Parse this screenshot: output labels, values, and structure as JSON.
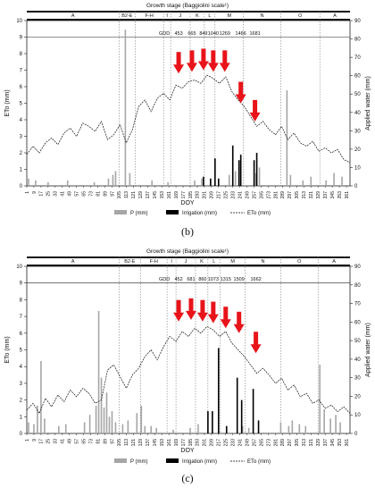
{
  "chart_data": [
    {
      "type": "bar",
      "panel_label": "(b)",
      "stage_title": "Growth stage (Baggiolini scale¹)",
      "stages": [
        {
          "label": "A",
          "start": 1,
          "end": 105
        },
        {
          "label": "B2-E",
          "start": 105,
          "end": 123
        },
        {
          "label": "F-H",
          "start": 123,
          "end": 155
        },
        {
          "label": "I",
          "start": 155,
          "end": 163
        },
        {
          "label": "J",
          "start": 163,
          "end": 185
        },
        {
          "label": "K",
          "start": 185,
          "end": 201
        },
        {
          "label": "L",
          "start": 201,
          "end": 213
        },
        {
          "label": "M",
          "start": 213,
          "end": 245
        },
        {
          "label": "N",
          "start": 245,
          "end": 287
        },
        {
          "label": "O",
          "start": 287,
          "end": 331
        },
        {
          "label": "A",
          "start": 331,
          "end": 365
        }
      ],
      "gdd_label": "GDD",
      "gdd": [
        {
          "doy": 172,
          "value": "453"
        },
        {
          "doy": 187,
          "value": "665"
        },
        {
          "doy": 200,
          "value": "849"
        },
        {
          "doy": 211,
          "value": "1040"
        },
        {
          "doy": 224,
          "value": "1269"
        },
        {
          "doy": 242,
          "value": "1466"
        },
        {
          "doy": 258,
          "value": "1681"
        }
      ],
      "arrows_doy": [
        172,
        187,
        200,
        211,
        224,
        242,
        258
      ],
      "arrow_eto": [
        6.8,
        6.9,
        7.0,
        6.9,
        6.9,
        5.0,
        3.9
      ],
      "x_ticks": [
        1,
        9,
        17,
        25,
        33,
        41,
        49,
        57,
        65,
        73,
        81,
        89,
        97,
        105,
        113,
        121,
        129,
        137,
        145,
        153,
        161,
        169,
        177,
        185,
        193,
        201,
        209,
        217,
        225,
        233,
        241,
        249,
        257,
        265,
        273,
        281,
        289,
        297,
        305,
        313,
        321,
        329,
        337,
        345,
        353,
        361
      ],
      "xlabel": "DOY",
      "ylabel": "ETo (mm)",
      "y2label": "Applied water (mm)",
      "ylim": [
        0,
        10
      ],
      "y2lim": [
        0,
        90
      ],
      "y_ticks": [
        0,
        1,
        2,
        3,
        4,
        5,
        6,
        7,
        8,
        9,
        10
      ],
      "y2_ticks": [
        0,
        10,
        20,
        30,
        40,
        50,
        60,
        70,
        80,
        90
      ],
      "legend": {
        "p": "P (mm)",
        "irr": "Irrigation (mm)",
        "eto": "ETo (mm)"
      },
      "eto_series": {
        "name": "ETo (mm)",
        "points": [
          [
            1,
            1.9
          ],
          [
            8,
            2.4
          ],
          [
            15,
            2.0
          ],
          [
            22,
            2.6
          ],
          [
            29,
            2.9
          ],
          [
            36,
            2.5
          ],
          [
            43,
            3.2
          ],
          [
            50,
            3.5
          ],
          [
            57,
            3.0
          ],
          [
            64,
            3.8
          ],
          [
            71,
            3.6
          ],
          [
            78,
            3.3
          ],
          [
            85,
            3.9
          ],
          [
            92,
            2.8
          ],
          [
            99,
            3.1
          ],
          [
            106,
            3.7
          ],
          [
            113,
            2.6
          ],
          [
            120,
            3.4
          ],
          [
            127,
            4.8
          ],
          [
            134,
            5.2
          ],
          [
            141,
            4.5
          ],
          [
            148,
            5.3
          ],
          [
            155,
            5.6
          ],
          [
            162,
            5.2
          ],
          [
            169,
            6.1
          ],
          [
            176,
            5.9
          ],
          [
            183,
            6.3
          ],
          [
            190,
            6.4
          ],
          [
            197,
            6.2
          ],
          [
            204,
            6.7
          ],
          [
            211,
            6.5
          ],
          [
            218,
            6.2
          ],
          [
            225,
            6.6
          ],
          [
            232,
            5.7
          ],
          [
            239,
            5.2
          ],
          [
            246,
            4.8
          ],
          [
            253,
            4.2
          ],
          [
            260,
            3.6
          ],
          [
            267,
            3.9
          ],
          [
            274,
            3.4
          ],
          [
            281,
            3.1
          ],
          [
            288,
            3.6
          ],
          [
            295,
            2.8
          ],
          [
            302,
            3.2
          ],
          [
            309,
            2.6
          ],
          [
            316,
            2.4
          ],
          [
            323,
            2.7
          ],
          [
            330,
            2.1
          ],
          [
            337,
            2.3
          ],
          [
            344,
            2.0
          ],
          [
            351,
            2.2
          ],
          [
            358,
            1.6
          ],
          [
            365,
            1.4
          ]
        ]
      },
      "p_series": {
        "name": "P (mm)",
        "points": [
          [
            3,
            4
          ],
          [
            11,
            3
          ],
          [
            25,
            2
          ],
          [
            47,
            3
          ],
          [
            77,
            2
          ],
          [
            93,
            4
          ],
          [
            98,
            6
          ],
          [
            101,
            8
          ],
          [
            112,
            85
          ],
          [
            117,
            7
          ],
          [
            142,
            3
          ],
          [
            160,
            2
          ],
          [
            190,
            3
          ],
          [
            198,
            4
          ],
          [
            229,
            6
          ],
          [
            236,
            8
          ],
          [
            259,
            7
          ],
          [
            263,
            10
          ],
          [
            294,
            52
          ],
          [
            298,
            6
          ],
          [
            312,
            3
          ],
          [
            321,
            5
          ],
          [
            338,
            3
          ],
          [
            347,
            7
          ],
          [
            356,
            5
          ]
        ]
      },
      "irr_series": {
        "name": "Irrigation (mm)",
        "points": [
          [
            200,
            5
          ],
          [
            208,
            4
          ],
          [
            213,
            15
          ],
          [
            217,
            4
          ],
          [
            233,
            22
          ],
          [
            240,
            14
          ],
          [
            242,
            17
          ],
          [
            257,
            14
          ],
          [
            260,
            18
          ]
        ]
      }
    },
    {
      "type": "bar",
      "panel_label": "(c)",
      "stage_title": "Growth stage (Baggiolini scale¹)",
      "stages": [
        {
          "label": "A",
          "start": 1,
          "end": 105
        },
        {
          "label": "B2-E",
          "start": 105,
          "end": 129
        },
        {
          "label": "F-H",
          "start": 129,
          "end": 159
        },
        {
          "label": "I",
          "start": 159,
          "end": 169
        },
        {
          "label": "J",
          "start": 169,
          "end": 191
        },
        {
          "label": "K",
          "start": 191,
          "end": 205
        },
        {
          "label": "L",
          "start": 205,
          "end": 219
        },
        {
          "label": "M",
          "start": 219,
          "end": 247
        },
        {
          "label": "N",
          "start": 247,
          "end": 287
        },
        {
          "label": "O",
          "start": 287,
          "end": 329
        },
        {
          "label": "A",
          "start": 329,
          "end": 365
        }
      ],
      "gdd_label": "GDD",
      "gdd": [
        {
          "doy": 172,
          "value": "452"
        },
        {
          "doy": 186,
          "value": "681"
        },
        {
          "doy": 199,
          "value": "860"
        },
        {
          "doy": 211,
          "value": "1073"
        },
        {
          "doy": 225,
          "value": "1315"
        },
        {
          "doy": 240,
          "value": "1509"
        },
        {
          "doy": 259,
          "value": "1662"
        }
      ],
      "arrows_doy": [
        172,
        186,
        199,
        211,
        225,
        240,
        259
      ],
      "arrow_eto": [
        6.7,
        6.8,
        6.7,
        6.6,
        6.3,
        6.0,
        4.8
      ],
      "x_ticks": [
        1,
        9,
        17,
        25,
        33,
        41,
        49,
        57,
        65,
        73,
        81,
        89,
        97,
        105,
        113,
        121,
        129,
        137,
        145,
        153,
        161,
        169,
        177,
        185,
        193,
        201,
        209,
        217,
        225,
        233,
        241,
        249,
        257,
        265,
        273,
        281,
        289,
        297,
        305,
        313,
        321,
        329,
        337,
        345,
        353,
        361
      ],
      "xlabel": "DOY",
      "ylabel": "ETo (mm)",
      "y2label": "Applied water (mm)",
      "ylim": [
        0,
        10
      ],
      "y2lim": [
        0,
        90
      ],
      "y_ticks": [
        0,
        1,
        2,
        3,
        4,
        5,
        6,
        7,
        8,
        9,
        10
      ],
      "y2_ticks": [
        0,
        10,
        20,
        30,
        40,
        50,
        60,
        70,
        80,
        90
      ],
      "legend": {
        "p": "P (mm)",
        "irr": "Irrigation (mm)",
        "eto": "ETo (mm)"
      },
      "eto_series": {
        "name": "ETo (mm)",
        "points": [
          [
            1,
            1.4
          ],
          [
            8,
            1.8
          ],
          [
            15,
            1.2
          ],
          [
            22,
            2.1
          ],
          [
            29,
            1.6
          ],
          [
            36,
            2.3
          ],
          [
            43,
            1.9
          ],
          [
            50,
            2.6
          ],
          [
            57,
            2.2
          ],
          [
            64,
            2.7
          ],
          [
            71,
            2.4
          ],
          [
            78,
            1.8
          ],
          [
            85,
            2.0
          ],
          [
            92,
            3.8
          ],
          [
            99,
            4.1
          ],
          [
            106,
            3.4
          ],
          [
            113,
            2.7
          ],
          [
            120,
            3.5
          ],
          [
            127,
            3.9
          ],
          [
            134,
            4.6
          ],
          [
            141,
            5.0
          ],
          [
            148,
            4.4
          ],
          [
            155,
            5.2
          ],
          [
            162,
            5.8
          ],
          [
            169,
            5.5
          ],
          [
            176,
            6.1
          ],
          [
            183,
            5.8
          ],
          [
            190,
            6.3
          ],
          [
            197,
            6.0
          ],
          [
            204,
            6.4
          ],
          [
            211,
            6.2
          ],
          [
            218,
            5.8
          ],
          [
            225,
            6.1
          ],
          [
            232,
            5.4
          ],
          [
            239,
            5.0
          ],
          [
            246,
            4.6
          ],
          [
            253,
            4.1
          ],
          [
            260,
            3.6
          ],
          [
            267,
            3.9
          ],
          [
            274,
            3.5
          ],
          [
            281,
            3.0
          ],
          [
            288,
            3.3
          ],
          [
            295,
            2.6
          ],
          [
            302,
            2.9
          ],
          [
            309,
            2.2
          ],
          [
            316,
            2.4
          ],
          [
            323,
            1.8
          ],
          [
            330,
            2.0
          ],
          [
            337,
            1.5
          ],
          [
            344,
            1.7
          ],
          [
            351,
            1.3
          ],
          [
            358,
            1.6
          ],
          [
            365,
            1.2
          ]
        ]
      },
      "p_series": {
        "name": "P (mm)",
        "points": [
          [
            3,
            6
          ],
          [
            9,
            5
          ],
          [
            13,
            15
          ],
          [
            17,
            39
          ],
          [
            21,
            8
          ],
          [
            37,
            4
          ],
          [
            45,
            5
          ],
          [
            66,
            6
          ],
          [
            72,
            10
          ],
          [
            79,
            15
          ],
          [
            82,
            66
          ],
          [
            85,
            30
          ],
          [
            88,
            14
          ],
          [
            91,
            22
          ],
          [
            94,
            9
          ],
          [
            97,
            12
          ],
          [
            101,
            6
          ],
          [
            109,
            5
          ],
          [
            115,
            7
          ],
          [
            125,
            11
          ],
          [
            130,
            15
          ],
          [
            134,
            4
          ],
          [
            141,
            4
          ],
          [
            147,
            3
          ],
          [
            166,
            2
          ],
          [
            185,
            3
          ],
          [
            194,
            5
          ],
          [
            244,
            4
          ],
          [
            251,
            3
          ],
          [
            287,
            6
          ],
          [
            296,
            4
          ],
          [
            300,
            7
          ],
          [
            308,
            5
          ],
          [
            315,
            4
          ],
          [
            331,
            37
          ],
          [
            336,
            13
          ],
          [
            343,
            8
          ],
          [
            349,
            10
          ],
          [
            354,
            6
          ]
        ]
      },
      "irr_series": {
        "name": "Irrigation (mm)",
        "points": [
          [
            205,
            12
          ],
          [
            210,
            12
          ],
          [
            217,
            46
          ],
          [
            226,
            4
          ],
          [
            238,
            30
          ],
          [
            243,
            18
          ],
          [
            256,
            24
          ],
          [
            262,
            7
          ]
        ]
      }
    }
  ]
}
